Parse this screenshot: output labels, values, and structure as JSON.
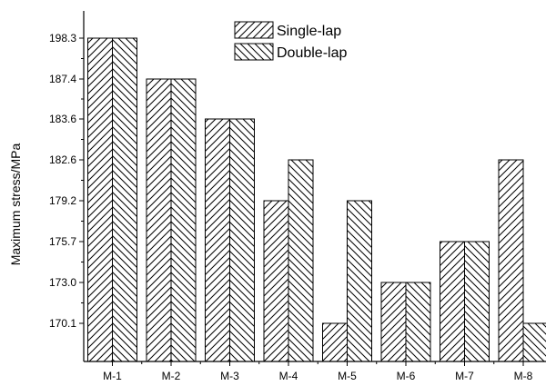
{
  "chart_data": {
    "type": "bar",
    "title": "",
    "xlabel": "",
    "ylabel": "Maximum stress/MPa",
    "categories": [
      "M-1",
      "M-2",
      "M-3",
      "M-4",
      "M-5",
      "M-6",
      "M-7",
      "M-8"
    ],
    "series": [
      {
        "name": "Single-lap",
        "values": [
          "198.3",
          "187.4",
          "183.6",
          "179.2",
          "170.1",
          "173.0",
          "175.7",
          "182.6"
        ],
        "pattern": "diagonal-up"
      },
      {
        "name": "Double-lap",
        "values": [
          "198.3",
          "187.4",
          "183.6",
          "182.6",
          "179.2",
          "173.0",
          "175.7",
          "170.1"
        ],
        "pattern": "diagonal-down"
      }
    ],
    "y_scale": "categorical",
    "y_ticks": [
      "170.1",
      "173.0",
      "175.7",
      "179.2",
      "182.6",
      "183.6",
      "187.4",
      "198.3"
    ],
    "grid": false,
    "legend_position": "top-right",
    "colors": {
      "bar_fill": "#ffffff",
      "bar_stroke": "#000000",
      "hatch": "#000000"
    }
  }
}
